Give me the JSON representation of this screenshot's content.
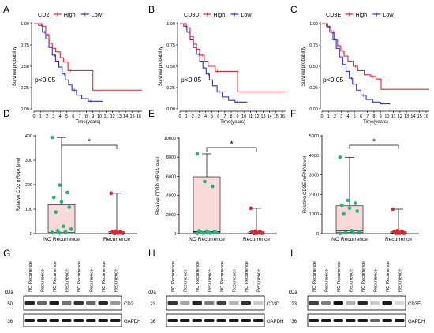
{
  "panels": [
    "A",
    "B",
    "C",
    "D",
    "E",
    "F",
    "G",
    "H",
    "I"
  ],
  "km_panels": [
    {
      "gene": "CD2",
      "legend_high": "High",
      "legend_low": "Low",
      "ylabel": "Survival probability",
      "xlabel": "Time(years)",
      "pvalue": "p<0.05",
      "high_color": "#e0262f",
      "low_color": "#2a2fd6",
      "x_ticks": [
        "0",
        "1",
        "2",
        "3",
        "4",
        "5",
        "6",
        "7",
        "8",
        "9",
        "10",
        "11",
        "12",
        "13",
        "14",
        "15",
        "16"
      ],
      "y_ticks": [
        "0.00",
        "0.25",
        "0.50",
        "0.75",
        "1.00"
      ],
      "high": [
        [
          0,
          1.0
        ],
        [
          1.2,
          0.97
        ],
        [
          1.8,
          0.87
        ],
        [
          2.3,
          0.77
        ],
        [
          2.8,
          0.71
        ],
        [
          3.3,
          0.67
        ],
        [
          4.0,
          0.6
        ],
        [
          4.5,
          0.55
        ],
        [
          5.2,
          0.45
        ],
        [
          7.5,
          0.45
        ],
        [
          9.0,
          0.22
        ],
        [
          16.5,
          0.22
        ]
      ],
      "low": [
        [
          0,
          1.0
        ],
        [
          0.7,
          0.98
        ],
        [
          1.3,
          0.9
        ],
        [
          1.8,
          0.82
        ],
        [
          2.3,
          0.72
        ],
        [
          2.8,
          0.63
        ],
        [
          3.3,
          0.56
        ],
        [
          3.8,
          0.49
        ],
        [
          4.3,
          0.41
        ],
        [
          4.8,
          0.34
        ],
        [
          5.3,
          0.28
        ],
        [
          5.8,
          0.22
        ],
        [
          6.5,
          0.16
        ],
        [
          7.3,
          0.12
        ],
        [
          8.3,
          0.09
        ],
        [
          10.5,
          0.09
        ]
      ]
    },
    {
      "gene": "CD3D",
      "legend_high": "High",
      "legend_low": "Low",
      "ylabel": "Survival probability",
      "xlabel": "Time(years)",
      "pvalue": "p<0.05",
      "high_color": "#e0262f",
      "low_color": "#2a2fd6",
      "x_ticks": [
        "0",
        "1",
        "2",
        "3",
        "4",
        "5",
        "6",
        "7",
        "8",
        "9",
        "10",
        "11",
        "12",
        "13",
        "14",
        "15",
        "16"
      ],
      "y_ticks": [
        "0.00",
        "0.25",
        "0.50",
        "0.75",
        "1.00"
      ],
      "high": [
        [
          0,
          1.0
        ],
        [
          1.0,
          0.95
        ],
        [
          1.6,
          0.85
        ],
        [
          2.1,
          0.76
        ],
        [
          2.6,
          0.7
        ],
        [
          3.1,
          0.63
        ],
        [
          3.8,
          0.56
        ],
        [
          4.4,
          0.5
        ],
        [
          5.5,
          0.44
        ],
        [
          7.8,
          0.44
        ],
        [
          9.0,
          0.2
        ],
        [
          16.5,
          0.2
        ]
      ],
      "low": [
        [
          0,
          1.0
        ],
        [
          0.6,
          0.97
        ],
        [
          1.1,
          0.9
        ],
        [
          1.6,
          0.81
        ],
        [
          2.1,
          0.72
        ],
        [
          2.6,
          0.64
        ],
        [
          3.1,
          0.56
        ],
        [
          3.6,
          0.48
        ],
        [
          4.1,
          0.41
        ],
        [
          4.6,
          0.34
        ],
        [
          5.1,
          0.27
        ],
        [
          5.8,
          0.2
        ],
        [
          6.6,
          0.14
        ],
        [
          7.6,
          0.1
        ],
        [
          8.6,
          0.08
        ],
        [
          10.5,
          0.08
        ]
      ]
    },
    {
      "gene": "CD3E",
      "legend_high": "High",
      "legend_low": "Low",
      "ylabel": "Survival probability",
      "xlabel": "Time(years)",
      "pvalue": "p<0.05",
      "high_color": "#e0262f",
      "low_color": "#2a2fd6",
      "x_ticks": [
        "0",
        "1",
        "2",
        "3",
        "4",
        "5",
        "6",
        "7",
        "8",
        "9",
        "10",
        "11",
        "12",
        "13",
        "14",
        "15",
        "16"
      ],
      "y_ticks": [
        "0.00",
        "0.25",
        "0.50",
        "0.75",
        "1.00"
      ],
      "high": [
        [
          0,
          1.0
        ],
        [
          0.9,
          0.96
        ],
        [
          1.4,
          0.9
        ],
        [
          1.9,
          0.82
        ],
        [
          2.4,
          0.74
        ],
        [
          2.9,
          0.68
        ],
        [
          3.4,
          0.62
        ],
        [
          4.0,
          0.56
        ],
        [
          4.8,
          0.5
        ],
        [
          5.5,
          0.45
        ],
        [
          6.5,
          0.4
        ],
        [
          7.5,
          0.38
        ],
        [
          8.3,
          0.35
        ],
        [
          9.1,
          0.23
        ],
        [
          16.5,
          0.23
        ]
      ],
      "low": [
        [
          0,
          1.0
        ],
        [
          0.7,
          0.97
        ],
        [
          1.2,
          0.9
        ],
        [
          1.7,
          0.81
        ],
        [
          2.2,
          0.71
        ],
        [
          2.7,
          0.61
        ],
        [
          3.2,
          0.52
        ],
        [
          3.7,
          0.44
        ],
        [
          4.2,
          0.36
        ],
        [
          4.7,
          0.29
        ],
        [
          5.3,
          0.22
        ],
        [
          6.0,
          0.16
        ],
        [
          6.8,
          0.11
        ],
        [
          7.8,
          0.08
        ],
        [
          9.0,
          0.06
        ],
        [
          10.5,
          0.06
        ]
      ]
    }
  ],
  "box_panels": [
    {
      "ylabel": "Relative CD2 mRNA level",
      "y_ticks": [
        "0",
        "100",
        "200",
        "300",
        "400"
      ],
      "ymax": 400,
      "categories": [
        "NO Recurrence",
        "Recurrence"
      ],
      "significance": "*",
      "box_color": "#f9d9d9",
      "point_colors": [
        "#1fb57a",
        "#e0262f"
      ],
      "groups": [
        {
          "min": 0,
          "q1": 5,
          "median": 15,
          "q3": 118,
          "max": 393,
          "points": [
            393,
            198,
            168,
            148,
            130,
            108,
            88,
            30,
            18,
            12,
            8,
            5,
            2
          ]
        },
        {
          "min": 0,
          "q1": 0,
          "median": 2,
          "q3": 8,
          "max": 165,
          "points": [
            165,
            10,
            8,
            6,
            5,
            4,
            3,
            2,
            1,
            0
          ]
        }
      ]
    },
    {
      "ylabel": "Relative CD3D mRNA level",
      "y_ticks": [
        "0",
        "2000",
        "4000",
        "6000",
        "8000",
        "10000"
      ],
      "ymax": 10000,
      "categories": [
        "NO Recurrence",
        "Recurrence"
      ],
      "significance": "*",
      "box_color": "#f9d9d9",
      "point_colors": [
        "#1fb57a",
        "#e0262f"
      ],
      "groups": [
        {
          "min": 0,
          "q1": 100,
          "median": 200,
          "q3": 5950,
          "max": 8350,
          "points": [
            8350,
            5450,
            4950,
            300,
            250,
            200,
            150,
            120,
            80,
            50,
            30,
            10
          ]
        },
        {
          "min": 0,
          "q1": 20,
          "median": 60,
          "q3": 200,
          "max": 2650,
          "points": [
            2650,
            250,
            220,
            180,
            150,
            100,
            80,
            50,
            30,
            10
          ]
        }
      ]
    },
    {
      "ylabel": "Relative CD3E mRNA level",
      "y_ticks": [
        "0",
        "1000",
        "2000",
        "3000",
        "4000",
        "5000"
      ],
      "ymax": 5000,
      "categories": [
        "NO Recurrence",
        "Recurrence"
      ],
      "significance": "*",
      "box_color": "#f9d9d9",
      "point_colors": [
        "#1fb57a",
        "#e0262f"
      ],
      "groups": [
        {
          "min": 0,
          "q1": 50,
          "median": 150,
          "q3": 1420,
          "max": 3900,
          "points": [
            3900,
            1700,
            1550,
            1450,
            1300,
            1150,
            1000,
            150,
            100,
            60,
            30,
            10
          ]
        },
        {
          "min": 0,
          "q1": 10,
          "median": 40,
          "q3": 100,
          "max": 1250,
          "points": [
            1250,
            150,
            120,
            100,
            80,
            60,
            40,
            20,
            10,
            5
          ]
        }
      ]
    }
  ],
  "blot_panels": [
    {
      "lane_labels": [
        "NO Recurrence",
        "Recurrence",
        "NO Recurrence",
        "Recurrence",
        "NO Recurrence",
        "Recurrence",
        "NO Recurrence",
        "Recurrence"
      ],
      "kda_label": "kDa",
      "top_kda": "50",
      "top_protein": "CD2",
      "bottom_kda": "36",
      "bottom_protein": "GAPDH",
      "top_intensity": [
        0.85,
        0.6,
        0.9,
        0.55,
        0.8,
        0.6,
        0.85,
        0.4
      ],
      "bottom_intensity": [
        0.9,
        0.9,
        0.9,
        0.9,
        0.9,
        0.9,
        0.9,
        0.9
      ]
    },
    {
      "lane_labels": [
        "NO Recurrence",
        "Recurrence",
        "NO Recurrence",
        "Recurrence",
        "NO Recurrence",
        "Recurrence",
        "NO Recurrence",
        "Recurrence"
      ],
      "kda_label": "kDa",
      "top_kda": "23",
      "top_protein": "CD3D",
      "bottom_kda": "36",
      "bottom_protein": "GAPDH",
      "top_intensity": [
        0.8,
        0.35,
        0.85,
        0.5,
        0.75,
        0.3,
        0.8,
        0.2
      ],
      "bottom_intensity": [
        0.9,
        0.9,
        0.9,
        0.9,
        0.9,
        0.9,
        0.9,
        0.9
      ]
    },
    {
      "lane_labels": [
        "NO Recurrence",
        "Recurrence",
        "NO Recurrence",
        "Recurrence",
        "NO Recurrence",
        "Recurrence",
        "NO Recurrence",
        "Recurrence"
      ],
      "kda_label": "kDa",
      "top_kda": "23",
      "top_protein": "CD3E",
      "bottom_kda": "36",
      "bottom_protein": "GAPDH",
      "top_intensity": [
        0.75,
        0.5,
        0.95,
        0.3,
        0.85,
        0.2,
        0.9,
        0.15
      ],
      "bottom_intensity": [
        0.9,
        0.9,
        0.9,
        0.9,
        0.9,
        0.6,
        0.9,
        0.9
      ]
    }
  ],
  "chart_data": [
    {
      "type": "line",
      "title": "CD2",
      "xlabel": "Time(years)",
      "ylabel": "Survival probability",
      "xlim": [
        0,
        16.5
      ],
      "ylim": [
        0,
        1
      ],
      "series": [
        {
          "name": "High",
          "x": [
            0,
            1.2,
            1.8,
            2.3,
            2.8,
            3.3,
            4.0,
            4.5,
            5.2,
            7.5,
            9.0,
            16.5
          ],
          "y": [
            1.0,
            0.97,
            0.87,
            0.77,
            0.71,
            0.67,
            0.6,
            0.55,
            0.45,
            0.45,
            0.22,
            0.22
          ]
        },
        {
          "name": "Low",
          "x": [
            0,
            0.7,
            1.3,
            1.8,
            2.3,
            2.8,
            3.3,
            3.8,
            4.3,
            4.8,
            5.3,
            5.8,
            6.5,
            7.3,
            8.3,
            10.5
          ],
          "y": [
            1.0,
            0.98,
            0.9,
            0.82,
            0.72,
            0.63,
            0.56,
            0.49,
            0.41,
            0.34,
            0.28,
            0.22,
            0.16,
            0.12,
            0.09,
            0.09
          ]
        }
      ],
      "annotations": [
        "p<0.05"
      ]
    },
    {
      "type": "line",
      "title": "CD3D",
      "xlabel": "Time(years)",
      "ylabel": "Survival probability",
      "xlim": [
        0,
        16.5
      ],
      "ylim": [
        0,
        1
      ],
      "series": [
        {
          "name": "High",
          "x": [
            0,
            1.0,
            1.6,
            2.1,
            2.6,
            3.1,
            3.8,
            4.4,
            5.5,
            7.8,
            9.0,
            16.5
          ],
          "y": [
            1.0,
            0.95,
            0.85,
            0.76,
            0.7,
            0.63,
            0.56,
            0.5,
            0.44,
            0.44,
            0.2,
            0.2
          ]
        },
        {
          "name": "Low",
          "x": [
            0,
            0.6,
            1.1,
            1.6,
            2.1,
            2.6,
            3.1,
            3.6,
            4.1,
            4.6,
            5.1,
            5.8,
            6.6,
            7.6,
            8.6,
            10.5
          ],
          "y": [
            1.0,
            0.97,
            0.9,
            0.81,
            0.72,
            0.64,
            0.56,
            0.48,
            0.41,
            0.34,
            0.27,
            0.2,
            0.14,
            0.1,
            0.08,
            0.08
          ]
        }
      ],
      "annotations": [
        "p<0.05"
      ]
    },
    {
      "type": "line",
      "title": "CD3E",
      "xlabel": "Time(years)",
      "ylabel": "Survival probability",
      "xlim": [
        0,
        16.5
      ],
      "ylim": [
        0,
        1
      ],
      "series": [
        {
          "name": "High",
          "x": [
            0,
            0.9,
            1.4,
            1.9,
            2.4,
            2.9,
            3.4,
            4.0,
            4.8,
            5.5,
            6.5,
            7.5,
            8.3,
            9.1,
            16.5
          ],
          "y": [
            1.0,
            0.96,
            0.9,
            0.82,
            0.74,
            0.68,
            0.62,
            0.56,
            0.5,
            0.45,
            0.4,
            0.38,
            0.35,
            0.23,
            0.23
          ]
        },
        {
          "name": "Low",
          "x": [
            0,
            0.7,
            1.2,
            1.7,
            2.2,
            2.7,
            3.2,
            3.7,
            4.2,
            4.7,
            5.3,
            6.0,
            6.8,
            7.8,
            9.0,
            10.5
          ],
          "y": [
            1.0,
            0.97,
            0.9,
            0.81,
            0.71,
            0.61,
            0.52,
            0.44,
            0.36,
            0.29,
            0.22,
            0.16,
            0.11,
            0.08,
            0.06,
            0.06
          ]
        }
      ],
      "annotations": [
        "p<0.05"
      ]
    },
    {
      "type": "bar",
      "ylabel": "Relative CD2 mRNA level",
      "categories": [
        "NO Recurrence",
        "Recurrence"
      ],
      "ylim": [
        0,
        400
      ],
      "values": [
        118,
        8
      ],
      "annotations": [
        "*"
      ]
    },
    {
      "type": "bar",
      "ylabel": "Relative CD3D mRNA level",
      "categories": [
        "NO Recurrence",
        "Recurrence"
      ],
      "ylim": [
        0,
        10000
      ],
      "values": [
        5950,
        200
      ],
      "annotations": [
        "*"
      ]
    },
    {
      "type": "bar",
      "ylabel": "Relative CD3E mRNA level",
      "categories": [
        "NO Recurrence",
        "Recurrence"
      ],
      "ylim": [
        0,
        5000
      ],
      "values": [
        1420,
        100
      ],
      "annotations": [
        "*"
      ]
    }
  ]
}
